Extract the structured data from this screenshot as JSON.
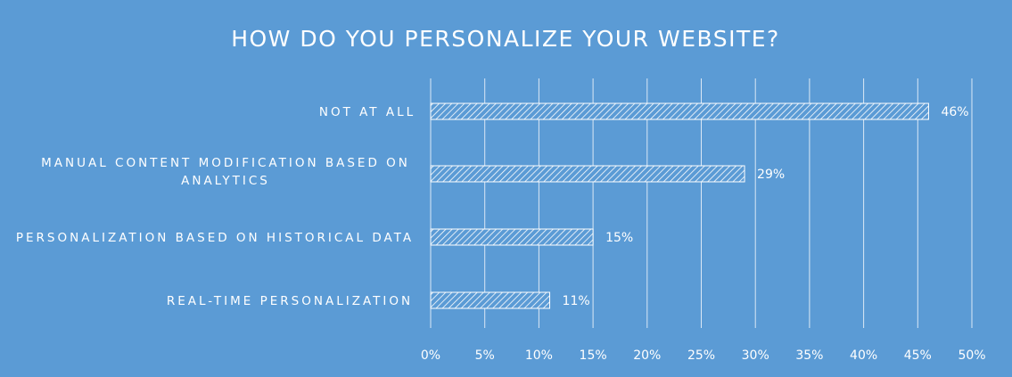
{
  "chart_data": {
    "type": "bar",
    "orientation": "horizontal",
    "title": "HOW DO YOU PERSONALIZE YOUR WEBSITE?",
    "categories": [
      "NOT AT ALL",
      "MANUAL CONTENT MODIFICATION BASED ON ANALYTICS",
      "PERSONALIZATION BASED ON HISTORICAL DATA",
      "REAL-TIME PERSONALIZATION"
    ],
    "category_lines": [
      [
        "NOT AT ALL"
      ],
      [
        "MANUAL CONTENT MODIFICATION BASED ON",
        "ANALYTICS"
      ],
      [
        "PERSONALIZATION BASED ON HISTORICAL DATA"
      ],
      [
        "REAL-TIME PERSONALIZATION"
      ]
    ],
    "values": [
      46,
      29,
      15,
      11
    ],
    "data_labels": [
      "46%",
      "29%",
      "15%",
      "11%"
    ],
    "xlim": [
      0,
      50
    ],
    "x_ticks": [
      0,
      5,
      10,
      15,
      20,
      25,
      30,
      35,
      40,
      45,
      50
    ],
    "x_tick_labels": [
      "0%",
      "5%",
      "10%",
      "15%",
      "20%",
      "25%",
      "30%",
      "35%",
      "40%",
      "45%",
      "50%"
    ],
    "grid": true,
    "legend": "none",
    "bar_fill": "diagonal-hatch",
    "colors": {
      "background": "#5b9bd5",
      "bar": "#ffffff",
      "gridline": "#dbe8f6",
      "text": "#ffffff"
    }
  }
}
